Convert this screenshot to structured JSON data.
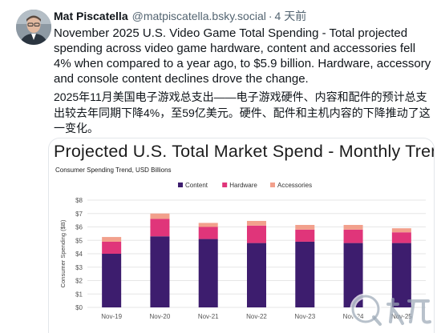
{
  "post": {
    "author_name": "Mat Piscatella",
    "author_handle": "@matpiscatella.bsky.social",
    "separator": "·",
    "time_ago": "4 天前",
    "text_en": "November 2025 U.S. Video Game Total Spending - Total projected spending across video game hardware, content and accessories fell 4% when compared to a year ago, to $5.9 billion. Hardware, accessory and console content declines drove the change.",
    "text_zh": "2025年11月美国电子游戏总支出——电子游戏硬件、内容和配件的预计总支出较去年同期下降4%，至59亿美元。硬件、配件和主机内容的下降推动了这一变化。"
  },
  "icons": {
    "avatar": "avatar-photo",
    "watermark": "jiuyou-logo"
  },
  "colors": {
    "content": "#3d1d6e",
    "hardware": "#e0357a",
    "accessories": "#f2a08c",
    "grid": "#e6e6e6"
  },
  "chart_data": {
    "type": "bar",
    "stacked": true,
    "title": "Projected U.S. Total Market Spend - Monthly Trend",
    "subtitle": "Consumer Spending Trend, USD Billions",
    "ylabel": "Consumer Spending ($B)",
    "ylim": [
      0,
      8
    ],
    "yticks": [
      "$0",
      "$1",
      "$2",
      "$3",
      "$4",
      "$5",
      "$6",
      "$7",
      "$8"
    ],
    "categories": [
      "Nov-19",
      "Nov-20",
      "Nov-21",
      "Nov-22",
      "Nov-23",
      "Nov-24",
      "Nov-25"
    ],
    "legend_position": "top-center",
    "grid": true,
    "series": [
      {
        "name": "Content",
        "values": [
          4.0,
          5.3,
          5.1,
          4.8,
          4.9,
          4.8,
          4.8
        ]
      },
      {
        "name": "Hardware",
        "values": [
          0.9,
          1.3,
          0.9,
          1.3,
          0.9,
          1.0,
          0.8
        ]
      },
      {
        "name": "Accessories",
        "values": [
          0.35,
          0.4,
          0.3,
          0.35,
          0.35,
          0.35,
          0.3
        ]
      }
    ]
  }
}
